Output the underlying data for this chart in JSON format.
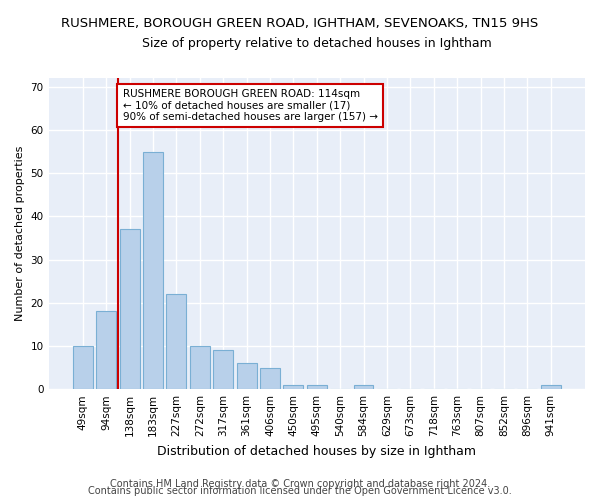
{
  "title1": "RUSHMERE, BOROUGH GREEN ROAD, IGHTHAM, SEVENOAKS, TN15 9HS",
  "title2": "Size of property relative to detached houses in Ightham",
  "xlabel": "Distribution of detached houses by size in Ightham",
  "ylabel": "Number of detached properties",
  "categories": [
    "49sqm",
    "94sqm",
    "138sqm",
    "183sqm",
    "227sqm",
    "272sqm",
    "317sqm",
    "361sqm",
    "406sqm",
    "450sqm",
    "495sqm",
    "540sqm",
    "584sqm",
    "629sqm",
    "673sqm",
    "718sqm",
    "763sqm",
    "807sqm",
    "852sqm",
    "896sqm",
    "941sqm"
  ],
  "values": [
    10,
    18,
    37,
    55,
    22,
    10,
    9,
    6,
    5,
    1,
    1,
    0,
    1,
    0,
    0,
    0,
    0,
    0,
    0,
    0,
    1
  ],
  "bar_color": "#b8d0ea",
  "bar_edge_color": "#7aafd4",
  "vline_color": "#cc0000",
  "vline_xindex": 1.5,
  "annotation_text": "RUSHMERE BOROUGH GREEN ROAD: 114sqm\n← 10% of detached houses are smaller (17)\n90% of semi-detached houses are larger (157) →",
  "annotation_box_facecolor": "#ffffff",
  "annotation_box_edgecolor": "#cc0000",
  "ylim": [
    0,
    72
  ],
  "yticks": [
    0,
    10,
    20,
    30,
    40,
    50,
    60,
    70
  ],
  "footer1": "Contains HM Land Registry data © Crown copyright and database right 2024.",
  "footer2": "Contains public sector information licensed under the Open Government Licence v3.0.",
  "fig_facecolor": "#ffffff",
  "ax_facecolor": "#e8eef8",
  "grid_color": "#ffffff",
  "title1_fontsize": 9.5,
  "title2_fontsize": 9,
  "xlabel_fontsize": 9,
  "ylabel_fontsize": 8,
  "tick_fontsize": 7.5,
  "annot_fontsize": 7.5,
  "footer_fontsize": 7
}
